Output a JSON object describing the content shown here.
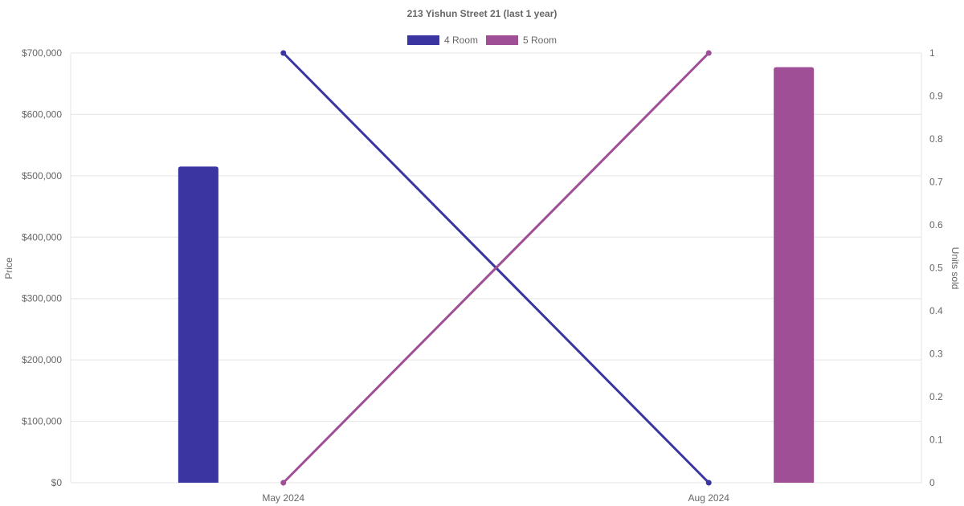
{
  "chart_data": {
    "type": "bar",
    "title": "213 Yishun Street 21 (last 1 year)",
    "categories": [
      "May 2024",
      "Aug 2024"
    ],
    "y_left": {
      "label": "Price",
      "range": [
        0,
        700000
      ],
      "ticks": [
        "$0",
        "$100,000",
        "$200,000",
        "$300,000",
        "$400,000",
        "$500,000",
        "$600,000",
        "$700,000"
      ]
    },
    "y_right": {
      "label": "Units sold",
      "range": [
        0,
        1
      ],
      "ticks": [
        "0",
        "0.1",
        "0.2",
        "0.3",
        "0.4",
        "0.5",
        "0.6",
        "0.7",
        "0.8",
        "0.9",
        "1"
      ]
    },
    "grid": true,
    "legend": {
      "position": "top-center",
      "items": [
        "4 Room",
        "5 Room"
      ]
    },
    "bar_series": [
      {
        "name": "4 Room",
        "axis": "left",
        "color": "#3a35a0",
        "values": [
          515000,
          null
        ]
      },
      {
        "name": "5 Room",
        "axis": "left",
        "color": "#9e4f96",
        "values": [
          null,
          677000
        ]
      }
    ],
    "line_series": [
      {
        "name": "4 Room",
        "axis": "right",
        "color": "#3a35a0",
        "values": [
          1,
          0
        ]
      },
      {
        "name": "5 Room",
        "axis": "right",
        "color": "#9e4f96",
        "values": [
          0,
          1
        ]
      }
    ]
  }
}
